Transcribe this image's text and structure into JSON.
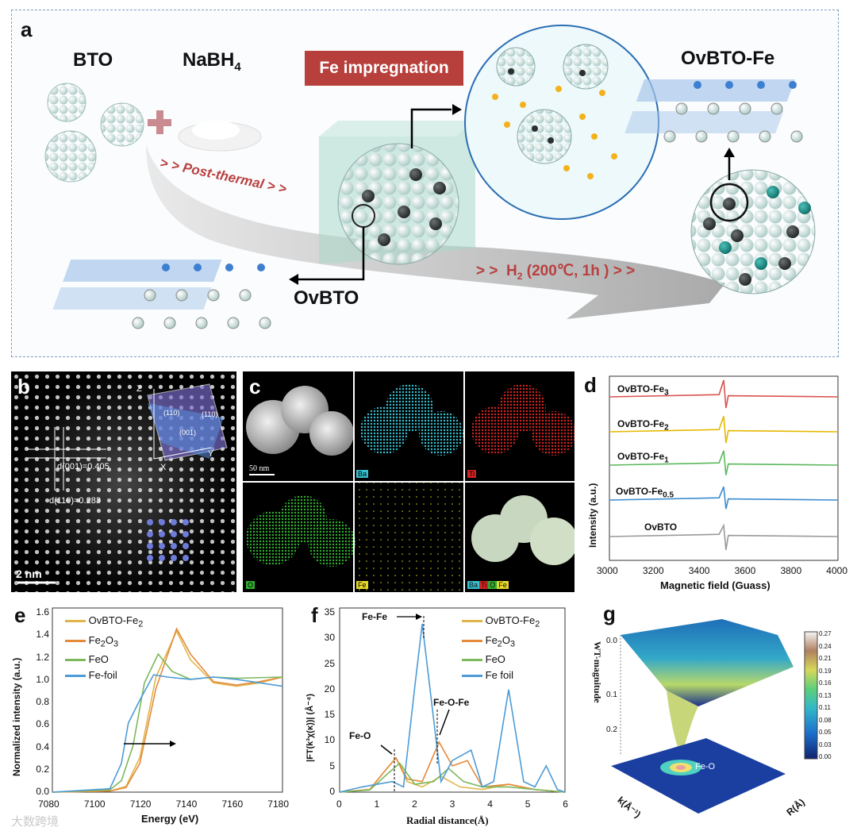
{
  "panel_a": {
    "label": "a",
    "bto": "BTO",
    "nabh4": "NaBH",
    "nabh4_sub": "4",
    "fe_impregnation": "Fe impregnation",
    "post_thermal": "Post-thermal",
    "arrows_left": "> >",
    "h2_label": "H",
    "h2_sub": "2",
    "h2_cond": "(200℃, 1h )",
    "ovbto": "OvBTO",
    "ovbto_fe": "OvBTO-Fe",
    "colors": {
      "box": "#c0413c",
      "arrow": "#b84040",
      "sphere": "#cfe6e0",
      "dark": "#2a2f30",
      "teal": "#1b8f8a"
    }
  },
  "panel_b": {
    "label": "b",
    "d001": "d(001)=0.405",
    "d110": "d(110)=0.283",
    "scale": "2 nm",
    "miller1": "(110)",
    "miller2": "(110)",
    "miller3": "(001)",
    "axis_z": "Z",
    "axis_y": "Y",
    "axis_x": "X"
  },
  "panel_c": {
    "label": "c",
    "scale": "50 nm",
    "tiles": [
      "",
      "Ba",
      "Ti",
      "O",
      "Fe",
      ""
    ],
    "legend": [
      "Ba",
      "Ti",
      "O",
      "Fe"
    ]
  },
  "panel_d": {
    "label": "d",
    "ylabel": "Intensity (a.u.)",
    "xlabel": "Magnetic field (Guass)",
    "xticks": [
      "3000",
      "3200",
      "3400",
      "3600",
      "3800",
      "4000"
    ],
    "series": [
      {
        "name": "OvBTO-Fe",
        "sub": "3",
        "color": "#d9534f"
      },
      {
        "name": "OvBTO-Fe",
        "sub": "2",
        "color": "#e6b800"
      },
      {
        "name": "OvBTO-Fe",
        "sub": "1",
        "color": "#5cb85c"
      },
      {
        "name": "OvBTO-Fe",
        "sub": "0.5",
        "color": "#3c8dce"
      },
      {
        "name": "OvBTO",
        "sub": "",
        "color": "#999999"
      }
    ]
  },
  "panel_e": {
    "label": "e",
    "ylabel": "Normalized intensity (a.u.)",
    "xlabel": "Energy (eV)",
    "xticks": [
      "7080",
      "7100",
      "7120",
      "7140",
      "7160",
      "7180"
    ],
    "yticks": [
      "0.0",
      "0.2",
      "0.4",
      "0.6",
      "0.8",
      "1.0",
      "1.2",
      "1.4",
      "1.6"
    ],
    "legend": [
      {
        "name": "OvBTO-Fe",
        "sub": "2",
        "color": "#e0b64a"
      },
      {
        "name": "Fe",
        "sub": "2",
        "name2": "O",
        "sub2": "3",
        "color": "#e58a3c"
      },
      {
        "name": "FeO",
        "sub": "",
        "color": "#7cb85c"
      },
      {
        "name": "Fe-foil",
        "sub": "",
        "color": "#4c9bd6"
      }
    ]
  },
  "panel_f": {
    "label": "f",
    "ylabel": "|FT(k³χ(κ))| (Å⁻⁴)",
    "xlabel": "Radial distance(Å)",
    "xticks": [
      "0",
      "1",
      "2",
      "3",
      "4",
      "5",
      "6"
    ],
    "yticks": [
      "0",
      "5",
      "10",
      "15",
      "20",
      "25",
      "30",
      "35"
    ],
    "ann_fefe": "Fe-Fe",
    "ann_feofe": "Fe-O-Fe",
    "ann_feo": "Fe-O",
    "legend": [
      {
        "name": "OvBTO-Fe",
        "sub": "2",
        "color": "#e0b64a"
      },
      {
        "name": "Fe",
        "sub": "2",
        "name2": "O",
        "sub2": "3",
        "color": "#e58a3c"
      },
      {
        "name": "FeO",
        "sub": "",
        "color": "#7cb85c"
      },
      {
        "name": "Fe foil",
        "sub": "",
        "color": "#4c9bd6"
      }
    ]
  },
  "panel_g": {
    "label": "g",
    "zlabel": "WT-magnitude",
    "xlabel": "k(Å⁻¹)",
    "ylabel": "R(Å)",
    "ann": "Fe-O",
    "colorbar": [
      "0.27",
      "0.24",
      "0.21",
      "0.19",
      "0.16",
      "0.13",
      "0.11",
      "0.08",
      "0.05",
      "0.03",
      "0.00"
    ],
    "zticks": [
      "0.0",
      "0.1",
      "0.2"
    ]
  },
  "watermark": "大数跨境",
  "chart_data": [
    {
      "type": "line",
      "title": "",
      "xlabel": "Magnetic field (Guass)",
      "ylabel": "Intensity (a.u.)",
      "xlim": [
        3000,
        4000
      ],
      "series": [
        {
          "name": "OvBTO-Fe3",
          "x": [
            3000,
            3480,
            3500,
            3510,
            3520,
            4000
          ],
          "values": [
            0,
            0.2,
            1.5,
            -1.0,
            0.1,
            0
          ]
        },
        {
          "name": "OvBTO-Fe2",
          "x": [
            3000,
            3480,
            3500,
            3510,
            3520,
            4000
          ],
          "values": [
            0,
            0.2,
            1.4,
            -1.0,
            0.1,
            0
          ]
        },
        {
          "name": "OvBTO-Fe1",
          "x": [
            3000,
            3480,
            3500,
            3510,
            3520,
            4000
          ],
          "values": [
            0,
            0.2,
            1.3,
            -0.9,
            0.1,
            0
          ]
        },
        {
          "name": "OvBTO-Fe0.5",
          "x": [
            3000,
            3480,
            3500,
            3510,
            3520,
            4000
          ],
          "values": [
            0,
            0.2,
            1.2,
            -0.8,
            0.1,
            0
          ]
        },
        {
          "name": "OvBTO",
          "x": [
            3000,
            3480,
            3500,
            3510,
            3520,
            4000
          ],
          "values": [
            0,
            0.2,
            1.0,
            -1.2,
            0.1,
            0
          ]
        }
      ]
    },
    {
      "type": "line",
      "title": "",
      "xlabel": "Energy (eV)",
      "ylabel": "Normalized intensity (a.u.)",
      "xlim": [
        7080,
        7180
      ],
      "ylim": [
        0,
        1.6
      ],
      "series": [
        {
          "name": "OvBTO-Fe2",
          "x": [
            7080,
            7105,
            7112,
            7118,
            7125,
            7134,
            7140,
            7150,
            7160,
            7170,
            7180
          ],
          "values": [
            0,
            0.01,
            0.05,
            0.3,
            1.0,
            1.4,
            1.15,
            0.95,
            0.92,
            0.95,
            1.0
          ]
        },
        {
          "name": "Fe2O3",
          "x": [
            7080,
            7105,
            7112,
            7118,
            7125,
            7134,
            7140,
            7150,
            7160,
            7170,
            7180
          ],
          "values": [
            0,
            0.01,
            0.04,
            0.25,
            0.9,
            1.42,
            1.2,
            0.96,
            0.93,
            0.96,
            1.0
          ]
        },
        {
          "name": "FeO",
          "x": [
            7080,
            7105,
            7110,
            7115,
            7120,
            7126,
            7132,
            7140,
            7150,
            7160,
            7180
          ],
          "values": [
            0,
            0.02,
            0.1,
            0.4,
            0.95,
            1.2,
            1.05,
            0.98,
            1.0,
            0.99,
            1.0
          ]
        },
        {
          "name": "Fe-foil",
          "x": [
            7080,
            7105,
            7110,
            7113,
            7118,
            7124,
            7130,
            7140,
            7150,
            7160,
            7180
          ],
          "values": [
            0,
            0.03,
            0.25,
            0.6,
            0.8,
            1.02,
            1.0,
            0.98,
            1.0,
            0.98,
            0.92
          ]
        }
      ]
    },
    {
      "type": "line",
      "title": "",
      "xlabel": "Radial distance(Å)",
      "ylabel": "|FT(k³χ(κ))| (Å⁻⁴)",
      "xlim": [
        0,
        6
      ],
      "ylim": [
        0,
        35
      ],
      "series": [
        {
          "name": "OvBTO-Fe2",
          "x": [
            0,
            0.8,
            1.2,
            1.5,
            1.8,
            2.2,
            2.7,
            3.2,
            3.8,
            4.5,
            5.2,
            6
          ],
          "values": [
            0,
            0.5,
            4,
            6.5,
            2,
            1,
            3,
            1,
            0.5,
            1.5,
            0.5,
            0
          ]
        },
        {
          "name": "Fe2O3",
          "x": [
            0,
            0.8,
            1.2,
            1.5,
            1.8,
            2.2,
            2.65,
            3.0,
            3.4,
            3.8,
            4.5,
            5.2,
            6
          ],
          "values": [
            0,
            0.5,
            4,
            6.5,
            2.5,
            2,
            9.5,
            5,
            6,
            1,
            1.5,
            0.5,
            0
          ]
        },
        {
          "name": "FeO",
          "x": [
            0,
            0.8,
            1.2,
            1.6,
            2.0,
            2.5,
            2.9,
            3.3,
            3.8,
            4.5,
            5.2,
            6
          ],
          "values": [
            0,
            0.4,
            3,
            5.5,
            1.5,
            2,
            4.5,
            2,
            1,
            1,
            0.5,
            0
          ]
        },
        {
          "name": "Fe foil",
          "x": [
            0,
            0.6,
            1.0,
            1.4,
            1.7,
            2.0,
            2.2,
            2.4,
            2.7,
            3.0,
            3.5,
            3.8,
            4.1,
            4.5,
            4.9,
            5.2,
            5.5,
            5.8,
            6
          ],
          "values": [
            0,
            1,
            1.5,
            2,
            1,
            20,
            32,
            20,
            2,
            6,
            8,
            1,
            2,
            19.5,
            2,
            1,
            5,
            0.5,
            0
          ]
        }
      ]
    }
  ]
}
